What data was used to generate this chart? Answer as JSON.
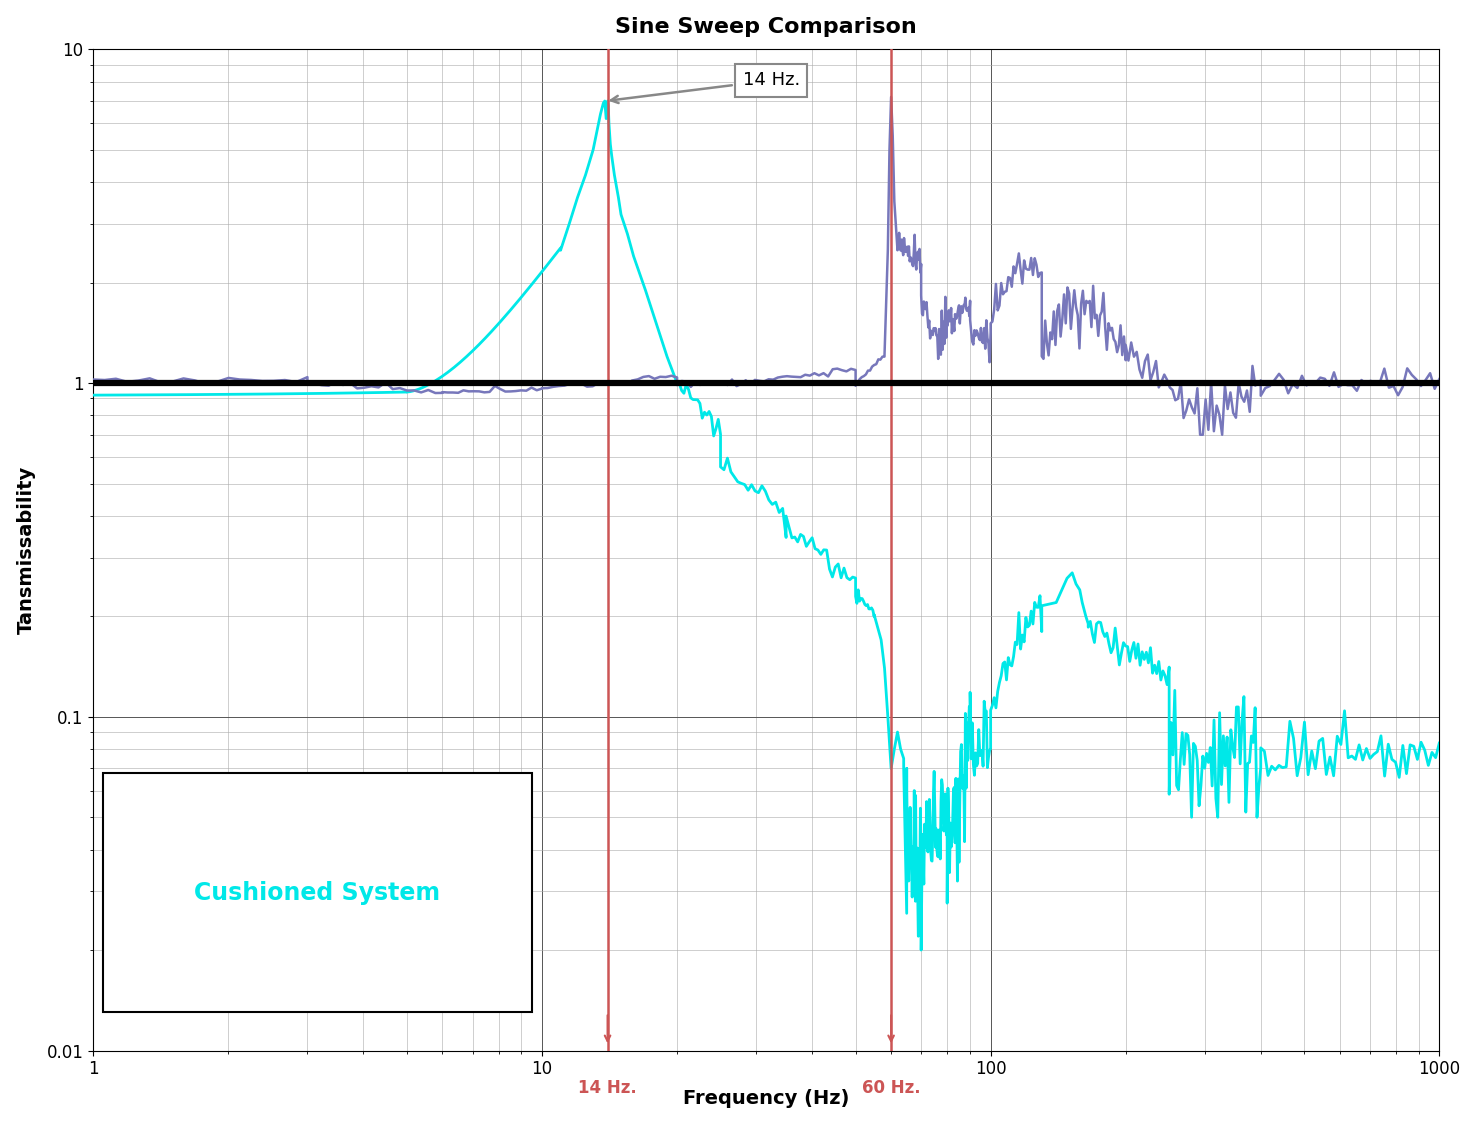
{
  "title": "Sine Sweep Comparison",
  "xlabel": "Frequency (Hz)",
  "ylabel": "Tansmissability",
  "xlim": [
    1,
    1000
  ],
  "ylim": [
    0.01,
    10
  ],
  "annotation_text": "14 Hz.",
  "vline1_x": 14,
  "vline2_x": 60,
  "vline1_label": "14 Hz.",
  "vline2_label": "60 Hz.",
  "legend_text": "Cushioned System",
  "cyan_color": "#00E8E8",
  "purple_color": "#7777BB",
  "hline_color": "#000000",
  "hline_y": 1.0,
  "vline_color": "#CC5555",
  "background_color": "#F5F5F5",
  "grid_major_color": "#555555",
  "grid_minor_color": "#AAAAAA",
  "title_fontsize": 16,
  "axis_label_fontsize": 14
}
